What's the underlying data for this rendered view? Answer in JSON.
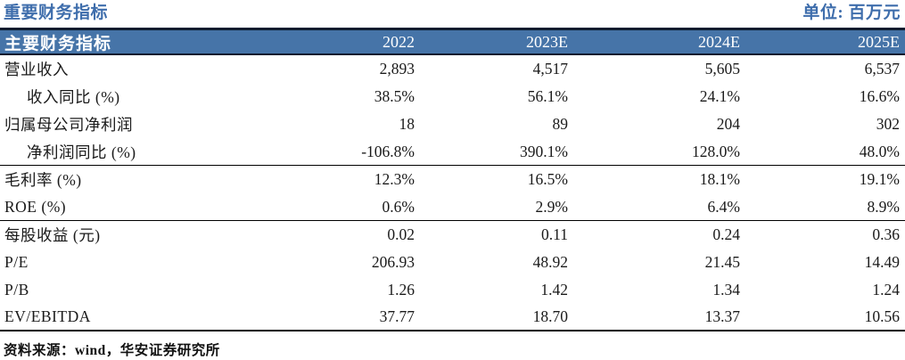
{
  "page": {
    "title": "重要财务指标",
    "unit": "单位: 百万元",
    "source": "资料来源：wind，华安证券研究所"
  },
  "colors": {
    "accent_blue": "#3F6EAC",
    "header_bg": "#4674A8",
    "header_text": "#FFFFFF",
    "dark_border": "#0D1B2E",
    "divider": "#000000",
    "body_text": "#1A1A1A"
  },
  "table": {
    "header": {
      "label": "主要财务指标",
      "years": [
        "2022",
        "2023E",
        "2024E",
        "2025E"
      ]
    },
    "rows": [
      {
        "label": "营业收入",
        "indent": false,
        "values": [
          "2,893",
          "4,517",
          "5,605",
          "6,537"
        ]
      },
      {
        "label": "收入同比 (%)",
        "indent": true,
        "values": [
          "38.5%",
          "56.1%",
          "24.1%",
          "16.6%"
        ]
      },
      {
        "label": "归属母公司净利润",
        "indent": false,
        "values": [
          "18",
          "89",
          "204",
          "302"
        ]
      },
      {
        "label": "净利润同比 (%)",
        "indent": true,
        "values": [
          "-106.8%",
          "390.1%",
          "128.0%",
          "48.0%"
        ]
      },
      {
        "label": "毛利率 (%)",
        "indent": false,
        "values": [
          "12.3%",
          "16.5%",
          "18.1%",
          "19.1%"
        ]
      },
      {
        "label": "ROE (%)",
        "indent": false,
        "values": [
          "0.6%",
          "2.9%",
          "6.4%",
          "8.9%"
        ]
      },
      {
        "label": "每股收益 (元)",
        "indent": false,
        "values": [
          "0.02",
          "0.11",
          "0.24",
          "0.36"
        ]
      },
      {
        "label": "P/E",
        "indent": false,
        "values": [
          "206.93",
          "48.92",
          "21.45",
          "14.49"
        ]
      },
      {
        "label": "P/B",
        "indent": false,
        "values": [
          "1.26",
          "1.42",
          "1.34",
          "1.24"
        ]
      },
      {
        "label": "EV/EBITDA",
        "indent": false,
        "values": [
          "37.77",
          "18.70",
          "13.37",
          "10.56"
        ]
      }
    ]
  },
  "chart_data": {
    "type": "table",
    "title": "重要财务指标",
    "unit": "百万元",
    "columns": [
      "主要财务指标",
      "2022",
      "2023E",
      "2024E",
      "2025E"
    ],
    "rows": [
      [
        "营业收入",
        "2,893",
        "4,517",
        "5,605",
        "6,537"
      ],
      [
        "收入同比 (%)",
        "38.5%",
        "56.1%",
        "24.1%",
        "16.6%"
      ],
      [
        "归属母公司净利润",
        "18",
        "89",
        "204",
        "302"
      ],
      [
        "净利润同比 (%)",
        "-106.8%",
        "390.1%",
        "128.0%",
        "48.0%"
      ],
      [
        "毛利率 (%)",
        "12.3%",
        "16.5%",
        "18.1%",
        "19.1%"
      ],
      [
        "ROE (%)",
        "0.6%",
        "2.9%",
        "6.4%",
        "8.9%"
      ],
      [
        "每股收益 (元)",
        "0.02",
        "0.11",
        "0.24",
        "0.36"
      ],
      [
        "P/E",
        "206.93",
        "48.92",
        "21.45",
        "14.49"
      ],
      [
        "P/B",
        "1.26",
        "1.42",
        "1.34",
        "1.24"
      ],
      [
        "EV/EBITDA",
        "37.77",
        "18.70",
        "13.37",
        "10.56"
      ]
    ],
    "source": "资料来源：wind，华安证券研究所"
  }
}
